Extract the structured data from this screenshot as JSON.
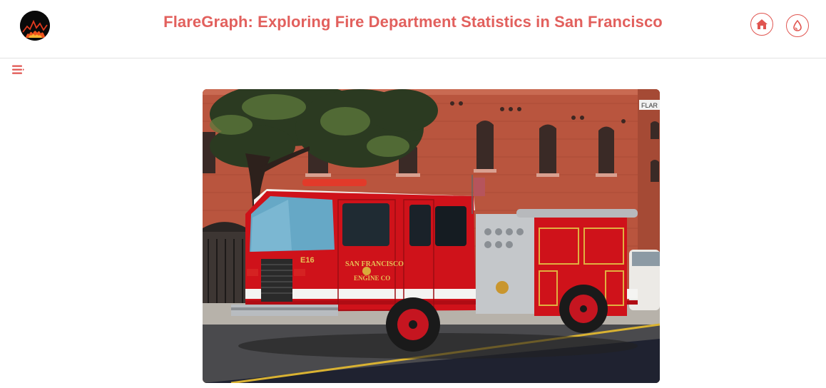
{
  "header": {
    "title": "FlareGraph: Exploring Fire Department Statistics in San Francisco",
    "logo_icon": "fire-chart-logo",
    "home_icon": "home-icon",
    "drop_icon": "drop-icon"
  },
  "sidebar_toggle": {
    "icon": "menu-icon"
  },
  "hero": {
    "description_icon": "fire-engine-photo",
    "truck_text_1": "SAN FRANCISCO",
    "truck_text_2": "ENGINE CO",
    "truck_number": "E16",
    "building_sign": "FLAR"
  },
  "colors": {
    "accent": "#e2605d",
    "header_border": "#e2e2e2",
    "brick": "#b8503c",
    "truck_red": "#d0111b"
  }
}
